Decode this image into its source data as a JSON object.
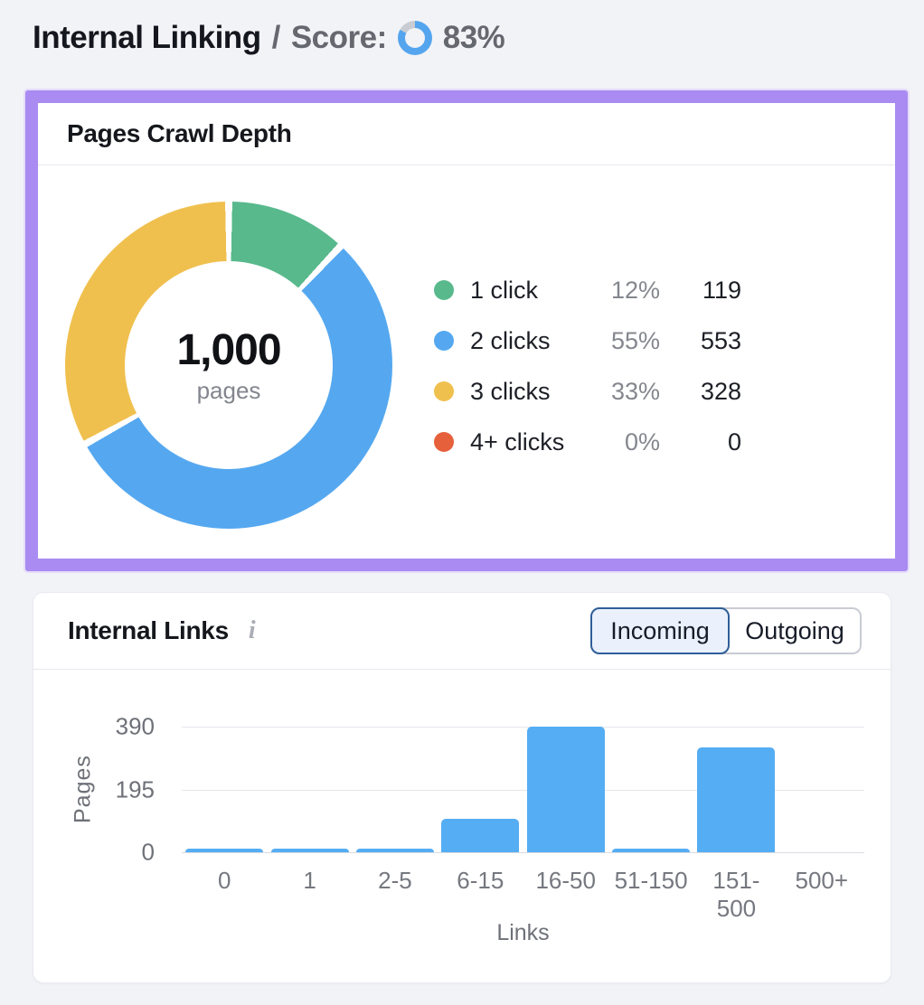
{
  "header": {
    "title": "Internal Linking",
    "separator": "/",
    "score_label": "Score:",
    "score_value": "83%",
    "score_pct": 83,
    "score_color": "#54A5EE",
    "score_track_color": "#C9CCD2"
  },
  "crawl_depth": {
    "title": "Pages Crawl Depth",
    "highlight_color": "#A98BF1",
    "center_value": "1,000",
    "center_label": "pages"
  },
  "internal_links": {
    "title": "Internal Links",
    "info_icon": "i",
    "toggle": {
      "options": [
        "Incoming",
        "Outgoing"
      ],
      "selected": "Incoming"
    }
  },
  "chart_data": [
    {
      "type": "pie",
      "subtype": "donut",
      "title": "Pages Crawl Depth",
      "center_value": "1,000",
      "center_label": "pages",
      "start_angle": "top",
      "direction": "clockwise",
      "legend_position": "right",
      "segments": [
        {
          "label": "1 click",
          "pct": 12,
          "value": 119,
          "color": "#58B98C"
        },
        {
          "label": "2 clicks",
          "pct": 55,
          "value": 553,
          "color": "#55A8F0"
        },
        {
          "label": "3 clicks",
          "pct": 33,
          "value": 328,
          "color": "#F0C04E"
        },
        {
          "label": "4+ clicks",
          "pct": 0,
          "value": 0,
          "color": "#E6603C"
        }
      ]
    },
    {
      "type": "bar",
      "title": "Internal Links (Incoming)",
      "categories": [
        "0",
        "1",
        "2-5",
        "6-15",
        "16-50",
        "51-150",
        "151-500",
        "500+"
      ],
      "values": [
        10,
        10,
        10,
        105,
        390,
        10,
        325,
        0
      ],
      "xlabel": "Links",
      "ylabel": "Pages",
      "yticks": [
        0,
        195,
        390
      ],
      "ylim": [
        0,
        390
      ],
      "bar_color": "#55ADF4",
      "grid": true,
      "legend_position": "none"
    }
  ]
}
